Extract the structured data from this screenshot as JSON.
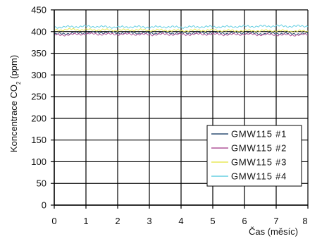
{
  "chart_data": {
    "type": "line",
    "title": "",
    "xlabel": "Čas (měsíc)",
    "ylabel_main": "Koncentrace CO",
    "ylabel_sub": "2",
    "ylabel_unit": " (ppm)",
    "xlim": [
      0,
      8
    ],
    "ylim": [
      0,
      450
    ],
    "x_ticks": [
      0,
      1,
      2,
      3,
      4,
      5,
      6,
      7,
      8
    ],
    "x_tick_labels": [
      "0",
      "1",
      "2",
      "3",
      "4",
      "5",
      "6",
      "7",
      "8"
    ],
    "y_ticks": [
      0,
      50,
      100,
      150,
      200,
      250,
      300,
      350,
      400,
      450
    ],
    "y_tick_labels": [
      "0",
      "50",
      "100",
      "150",
      "200",
      "250",
      "300",
      "350",
      "400",
      "450"
    ],
    "grid": true,
    "legend_position": "lower-right",
    "series": [
      {
        "name": "GMW115 #1",
        "color": "#2f4f74",
        "x": [
          0,
          0.5,
          1,
          1.5,
          2,
          2.5,
          3,
          3.5,
          4,
          4.5,
          5,
          5.5,
          6,
          6.5,
          7,
          7.5,
          8
        ],
        "values": [
          394,
          396,
          397,
          398,
          397,
          397,
          396,
          397,
          396,
          397,
          397,
          396,
          397,
          395,
          396,
          395,
          395
        ]
      },
      {
        "name": "GMW115 #2",
        "color": "#b0569a",
        "x": [
          0,
          0.5,
          1,
          1.5,
          2,
          2.5,
          3,
          3.5,
          4,
          4.5,
          5,
          5.5,
          6,
          6.5,
          7,
          7.5,
          8
        ],
        "values": [
          392,
          393,
          395,
          394,
          394,
          394,
          393,
          394,
          393,
          394,
          394,
          393,
          394,
          393,
          393,
          392,
          393
        ]
      },
      {
        "name": "GMW115 #3",
        "color": "#e8e85a",
        "x": [
          0,
          0.5,
          1,
          1.5,
          2,
          2.5,
          3,
          3.5,
          4,
          4.5,
          5,
          5.5,
          6,
          6.5,
          7,
          7.5,
          8
        ],
        "values": [
          403,
          405,
          404,
          404,
          403,
          404,
          403,
          403,
          402,
          403,
          403,
          402,
          402,
          402,
          402,
          401,
          401
        ]
      },
      {
        "name": "GMW115 #4",
        "color": "#66cfe2",
        "x": [
          0,
          0.5,
          1,
          1.5,
          2,
          2.5,
          3,
          3.5,
          4,
          4.5,
          5,
          5.5,
          6,
          6.5,
          7,
          7.5,
          8
        ],
        "values": [
          410,
          411,
          412,
          411,
          410,
          411,
          410,
          411,
          410,
          411,
          411,
          411,
          412,
          412,
          413,
          412,
          413
        ]
      }
    ]
  }
}
